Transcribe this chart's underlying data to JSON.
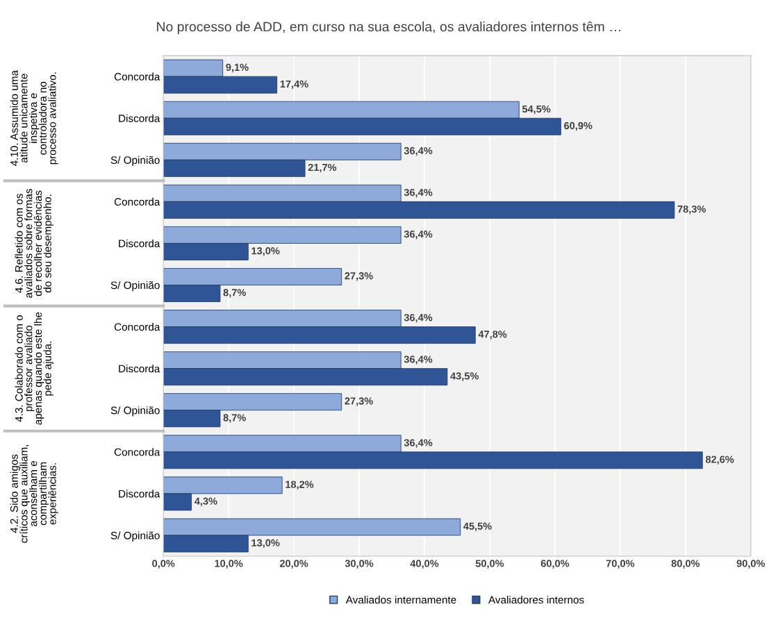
{
  "chart_data": {
    "type": "bar",
    "orientation": "horizontal",
    "title": "No processo de ADD, em curso na sua escola, os avaliadores internos têm …",
    "categories": [
      "Concorda",
      "Discorda",
      "S/ Opinião",
      "Concorda",
      "Discorda",
      "S/ Opinião",
      "Concorda",
      "Discorda",
      "S/ Opinião",
      "Concorda",
      "Discorda",
      "S/ Opinião"
    ],
    "annotations": [
      "4.10. Assumido uma atitude unicamente inspetiva e controladora no processo avaliativo.",
      "4.6. Refletido com os avaliados sobre formas de recolher evidências do seu desempenho.",
      "4.3. Colaborado com o professor avaliado apenas quando este lhe pede ajuda.",
      "4.2. Sido amigos críticos que auxiliam, aconselham e compartilham experiências."
    ],
    "series": [
      {
        "name": "Avaliados internamente",
        "color": "#8eaadb",
        "values": [
          9.1,
          54.5,
          36.4,
          36.4,
          36.4,
          27.3,
          36.4,
          36.4,
          27.3,
          36.4,
          18.2,
          45.5
        ],
        "value_labels": [
          "9,1%",
          "54,5%",
          "36,4%",
          "36,4%",
          "36,4%",
          "27,3%",
          "36,4%",
          "36,4%",
          "27,3%",
          "36,4%",
          "18,2%",
          "45,5%"
        ]
      },
      {
        "name": "Avaliadores internos",
        "color": "#2f5597",
        "values": [
          17.4,
          60.9,
          21.7,
          78.3,
          13.0,
          8.7,
          47.8,
          43.5,
          8.7,
          82.6,
          4.3,
          13.0
        ],
        "value_labels": [
          "17,4%",
          "60,9%",
          "21,7%",
          "78,3%",
          "13,0%",
          "8,7%",
          "47,8%",
          "43,5%",
          "8,7%",
          "82,6%",
          "4,3%",
          "13,0%"
        ]
      }
    ],
    "xlim": [
      0,
      90
    ],
    "xticks": [
      {
        "value": 0,
        "label": "0,0%"
      },
      {
        "value": 10,
        "label": "10,0%"
      },
      {
        "value": 20,
        "label": "20,0%"
      },
      {
        "value": 30,
        "label": "30,0%"
      },
      {
        "value": 40,
        "label": "40,0%"
      },
      {
        "value": 50,
        "label": "50,0%"
      },
      {
        "value": 60,
        "label": "60,0%"
      },
      {
        "value": 70,
        "label": "70,0%"
      },
      {
        "value": 80,
        "label": "80,0%"
      },
      {
        "value": 90,
        "label": "90,0%"
      }
    ],
    "grid": "x",
    "legend": "bottom"
  }
}
